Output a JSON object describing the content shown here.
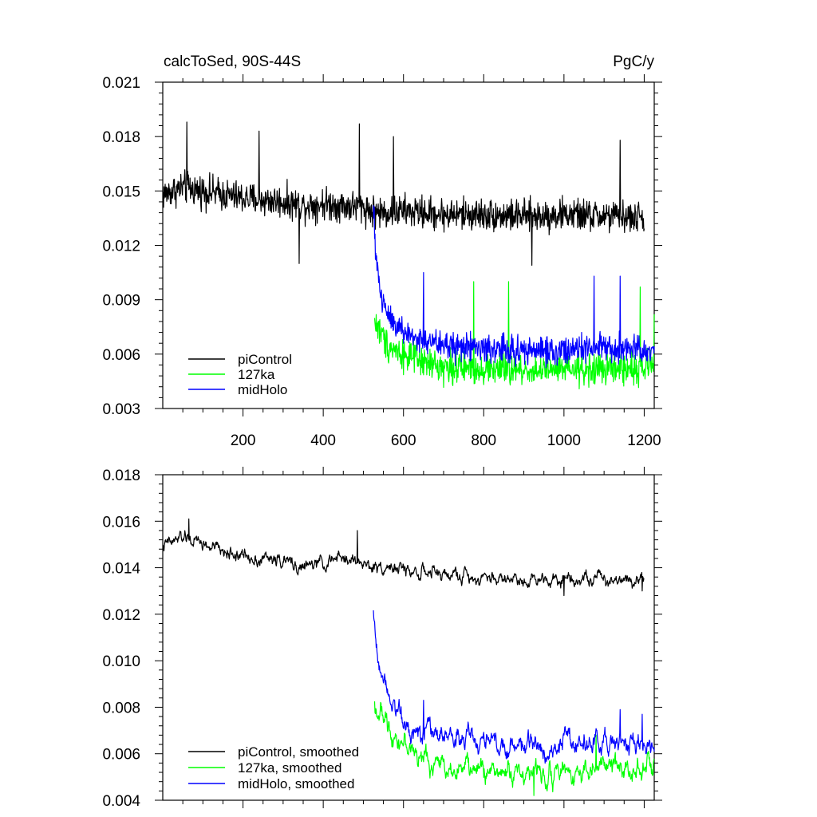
{
  "chart_data": [
    {
      "type": "line",
      "title": "calcToSed, 90S-44S",
      "units": "PgC/y",
      "xlim": [
        0,
        1225
      ],
      "ylim": [
        0.003,
        0.021
      ],
      "xticks": [
        200,
        400,
        600,
        800,
        1000,
        1200
      ],
      "xtick_labels": [
        "200",
        "400",
        "600",
        "800",
        "1000",
        "1200"
      ],
      "yticks": [
        0.003,
        0.006,
        0.009,
        0.012,
        0.015,
        0.018,
        0.021
      ],
      "ytick_labels": [
        "0.003",
        "0.006",
        "0.009",
        "0.012",
        "0.015",
        "0.018",
        "0.021"
      ],
      "legend_position": "bottom-left",
      "series": [
        {
          "name": "piControl",
          "color": "#000000",
          "x_range": [
            0,
            1200
          ],
          "x": [
            0,
            50,
            100,
            150,
            200,
            250,
            300,
            350,
            400,
            450,
            500,
            520,
            550,
            600,
            700,
            800,
            900,
            1000,
            1100,
            1200
          ],
          "y": [
            0.0148,
            0.0152,
            0.015,
            0.0148,
            0.0146,
            0.0145,
            0.0144,
            0.0142,
            0.0143,
            0.0142,
            0.0141,
            0.0139,
            0.0138,
            0.0139,
            0.0137,
            0.0137,
            0.0136,
            0.0137,
            0.0136,
            0.0135
          ],
          "noise": 0.0011,
          "spikes": [
            [
              60,
              0.0188
            ],
            [
              240,
              0.0183
            ],
            [
              490,
              0.0187
            ],
            [
              575,
              0.018
            ],
            [
              340,
              0.011
            ],
            [
              920,
              0.0109
            ],
            [
              1140,
              0.0178
            ]
          ]
        },
        {
          "name": "127ka",
          "color": "#00ff00",
          "x_range": [
            528,
            1225
          ],
          "x": [
            528,
            560,
            600,
            650,
            700,
            800,
            900,
            1000,
            1100,
            1200,
            1225
          ],
          "y": [
            0.0078,
            0.0065,
            0.006,
            0.0055,
            0.0053,
            0.0052,
            0.0051,
            0.0051,
            0.0052,
            0.0052,
            0.0055
          ],
          "noise": 0.0011,
          "spikes": [
            [
              775,
              0.01
            ],
            [
              862,
              0.01
            ],
            [
              1190,
              0.0097
            ],
            [
              1225,
              0.0082
            ]
          ]
        },
        {
          "name": "midHolo",
          "color": "#0000ff",
          "x_range": [
            525,
            1225
          ],
          "x": [
            525,
            530,
            545,
            570,
            600,
            650,
            700,
            800,
            900,
            1000,
            1100,
            1200,
            1225
          ],
          "y": [
            0.014,
            0.0118,
            0.009,
            0.008,
            0.0072,
            0.0067,
            0.0065,
            0.0063,
            0.0062,
            0.0062,
            0.0063,
            0.0062,
            0.0064
          ],
          "noise": 0.001,
          "spikes": [
            [
              650,
              0.0105
            ],
            [
              1075,
              0.0103
            ],
            [
              1140,
              0.0103
            ]
          ]
        }
      ]
    },
    {
      "type": "line",
      "xlim": [
        0,
        1225
      ],
      "ylim": [
        0.004,
        0.018
      ],
      "yticks": [
        0.004,
        0.006,
        0.008,
        0.01,
        0.012,
        0.014,
        0.016,
        0.018
      ],
      "ytick_labels": [
        "0.004",
        "0.006",
        "0.008",
        "0.010",
        "0.012",
        "0.014",
        "0.016",
        "0.018"
      ],
      "legend_position": "bottom-left",
      "series": [
        {
          "name": "piControl, smoothed",
          "color": "#000000",
          "x_range": [
            0,
            1200
          ],
          "x": [
            0,
            50,
            100,
            150,
            200,
            250,
            300,
            350,
            400,
            450,
            500,
            520,
            550,
            600,
            700,
            800,
            900,
            1000,
            1100,
            1200
          ],
          "y": [
            0.0149,
            0.0153,
            0.015,
            0.0147,
            0.0145,
            0.0144,
            0.0143,
            0.014,
            0.0142,
            0.0144,
            0.0142,
            0.014,
            0.0141,
            0.0139,
            0.0137,
            0.0136,
            0.0135,
            0.0136,
            0.0135,
            0.0136
          ],
          "noise": 0.00028,
          "spikes": [
            [
              65,
              0.0161
            ],
            [
              485,
              0.0156
            ],
            [
              1000,
              0.0128
            ],
            [
              1195,
              0.013
            ]
          ]
        },
        {
          "name": "127ka, smoothed",
          "color": "#00ff00",
          "x_range": [
            528,
            1225
          ],
          "x": [
            528,
            560,
            600,
            650,
            700,
            800,
            900,
            1000,
            1100,
            1200,
            1225
          ],
          "y": [
            0.0081,
            0.0072,
            0.0065,
            0.0057,
            0.0055,
            0.0053,
            0.0052,
            0.0052,
            0.0054,
            0.0055,
            0.0054
          ],
          "noise": 0.00045,
          "spikes": [
            [
              555,
              0.0078
            ],
            [
              925,
              0.0042
            ],
            [
              1080,
              0.0068
            ]
          ]
        },
        {
          "name": "midHolo, smoothed",
          "color": "#0000ff",
          "x_range": [
            525,
            1225
          ],
          "x": [
            525,
            530,
            545,
            570,
            600,
            650,
            700,
            800,
            900,
            1000,
            1100,
            1200,
            1225
          ],
          "y": [
            0.012,
            0.011,
            0.0095,
            0.0086,
            0.0073,
            0.007,
            0.0068,
            0.0065,
            0.0063,
            0.0064,
            0.0065,
            0.0064,
            0.0062
          ],
          "noise": 0.00045,
          "spikes": [
            [
              650,
              0.0083
            ],
            [
              1140,
              0.0079
            ],
            [
              1195,
              0.0077
            ]
          ]
        }
      ]
    }
  ]
}
